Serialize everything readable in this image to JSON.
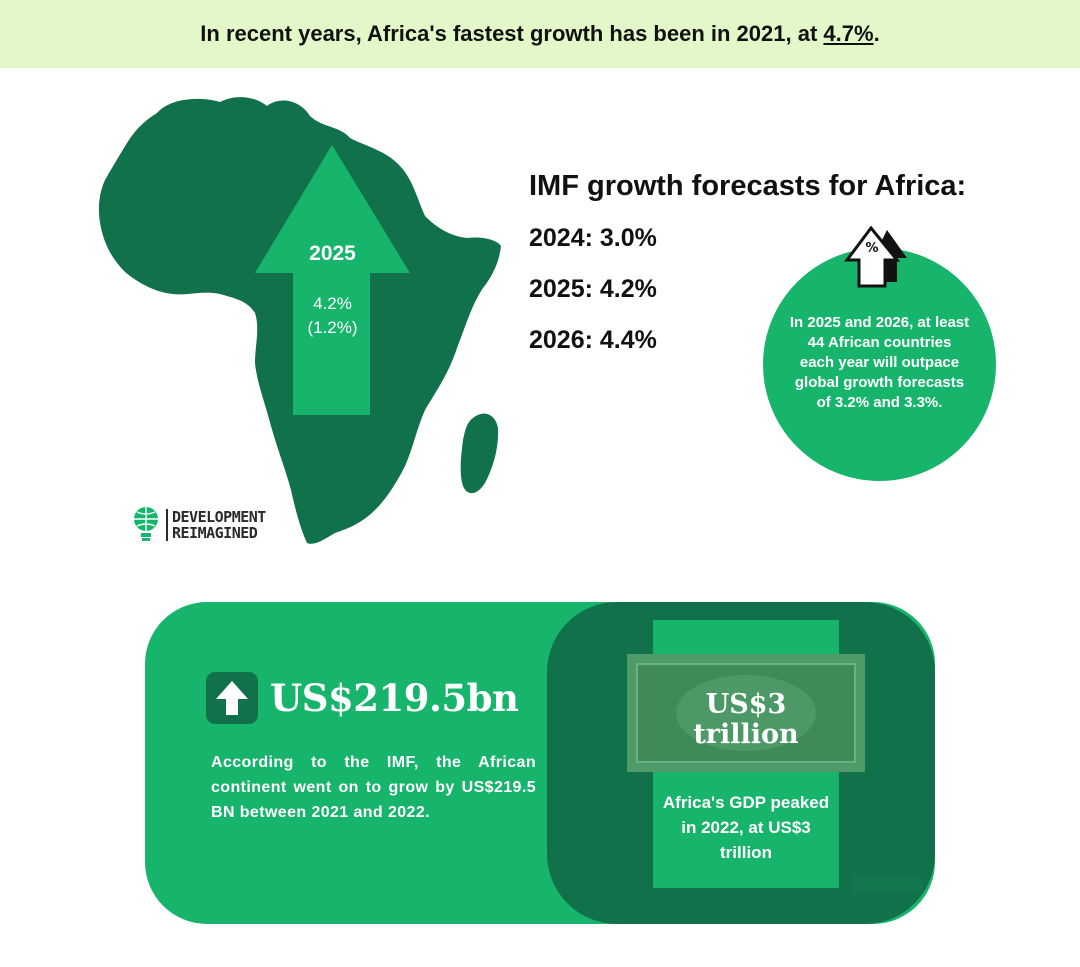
{
  "banner": {
    "text_before": "In recent years, Africa's fastest growth has been in 2021, at ",
    "highlight": "4.7%",
    "text_after": "."
  },
  "map": {
    "arrow_year": "2025",
    "arrow_value": "4.2%",
    "arrow_value_sub": "(1.2%)"
  },
  "logo": {
    "line1": "DEVELOPMENT",
    "line2": "REIMAGINED"
  },
  "forecasts": {
    "title": "IMF growth forecasts for Africa:",
    "items": [
      "2024: 3.0%",
      "2025: 4.2%",
      "2026: 4.4%"
    ]
  },
  "callout": {
    "text": "In 2025 and 2026, at least 44 African countries each year will outpace global growth forecasts of 3.2% and 3.3%."
  },
  "bottom": {
    "stat": "US$219.5bn",
    "description": "According to the IMF, the African continent went on to grow by US$219.5 BN between 2021 and 2022.",
    "bill_line1": "US$3",
    "bill_line2": "trillion",
    "bill_description": "Africa's GDP peaked in 2022, at US$3 trillion"
  },
  "colors": {
    "banner_bg": "#e3f8c8",
    "dark_green": "#11714a",
    "bright_green": "#17b56c"
  }
}
